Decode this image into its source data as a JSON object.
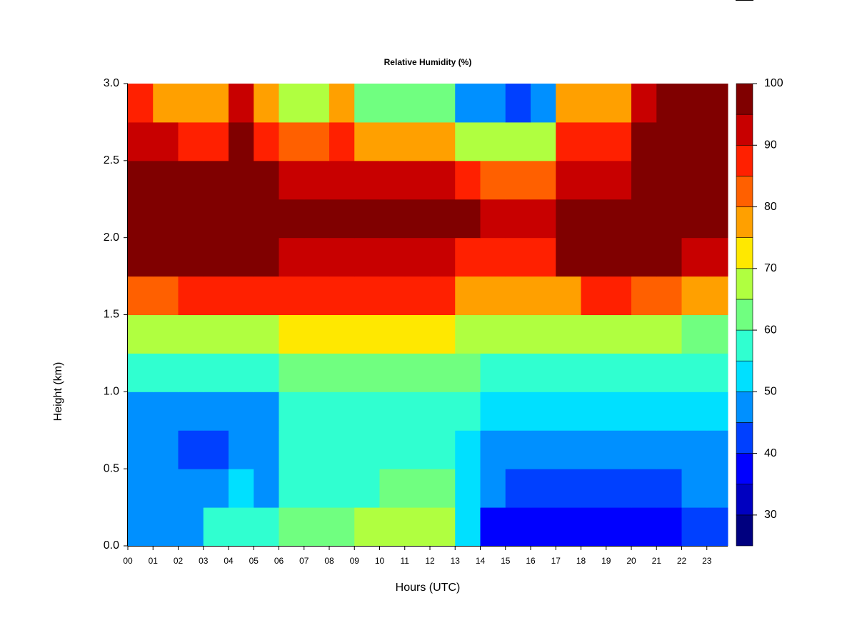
{
  "chart_data": {
    "type": "heatmap",
    "title": "Relative Humidity (%)",
    "xlabel": "Hours (UTC)",
    "ylabel": "Height (km)",
    "x": [
      0.5,
      1.5,
      2.5,
      3.5,
      4.5,
      5.5,
      6.5,
      7.5,
      8.5,
      9.5,
      10.5,
      11.5,
      12.5,
      13.5,
      14.5,
      15.5,
      16.5,
      17.5,
      18.5,
      19.5,
      20.5,
      21.5,
      22.5,
      23.5
    ],
    "y": [
      0.125,
      0.375,
      0.625,
      0.875,
      1.125,
      1.375,
      1.625,
      1.875,
      2.125,
      2.375,
      2.625,
      2.875
    ],
    "z": [
      [
        48,
        48,
        45,
        55,
        55,
        55,
        62,
        63,
        64,
        65,
        65,
        65,
        65,
        50,
        38,
        38,
        37,
        35,
        35,
        35,
        37,
        38,
        42,
        42
      ],
      [
        47,
        47,
        45,
        45,
        52,
        48,
        58,
        58,
        58,
        58,
        62,
        62,
        62,
        53,
        47,
        44,
        44,
        44,
        44,
        44,
        44,
        44,
        45,
        45
      ],
      [
        47,
        47,
        43,
        43,
        46,
        46,
        55,
        55,
        55,
        55,
        55,
        55,
        55,
        52,
        47,
        47,
        47,
        47,
        47,
        47,
        47,
        47,
        47,
        47
      ],
      [
        49,
        49,
        47,
        47,
        47,
        47,
        57,
        57,
        57,
        57,
        57,
        57,
        57,
        55,
        50,
        50,
        50,
        50,
        50,
        50,
        50,
        50,
        50,
        50
      ],
      [
        55,
        55,
        55,
        55,
        55,
        55,
        63,
        63,
        63,
        63,
        63,
        63,
        63,
        60,
        57,
        57,
        57,
        57,
        57,
        57,
        57,
        57,
        57,
        57
      ],
      [
        67,
        67,
        67,
        67,
        67,
        67,
        70,
        70,
        70,
        70,
        70,
        70,
        70,
        65,
        65,
        65,
        65,
        65,
        68,
        68,
        68,
        68,
        62,
        62
      ],
      [
        83,
        83,
        88,
        88,
        88,
        88,
        85,
        85,
        85,
        85,
        85,
        85,
        85,
        78,
        78,
        78,
        75,
        75,
        85,
        85,
        80,
        80,
        75,
        75
      ],
      [
        96,
        96,
        96,
        96,
        96,
        96,
        92,
        92,
        92,
        92,
        92,
        92,
        92,
        88,
        88,
        88,
        88,
        95,
        95,
        95,
        95,
        95,
        90,
        90
      ],
      [
        97,
        97,
        97,
        97,
        97,
        97,
        97,
        97,
        97,
        97,
        97,
        97,
        97,
        97,
        90,
        90,
        90,
        97,
        97,
        97,
        97,
        97,
        97,
        97
      ],
      [
        97,
        97,
        97,
        97,
        97,
        97,
        93,
        93,
        93,
        93,
        93,
        93,
        93,
        88,
        80,
        80,
        80,
        92,
        92,
        92,
        97,
        97,
        97,
        97
      ],
      [
        92,
        92,
        85,
        85,
        95,
        85,
        80,
        80,
        88,
        78,
        78,
        78,
        78,
        68,
        68,
        68,
        68,
        85,
        85,
        85,
        97,
        97,
        97,
        97
      ],
      [
        85,
        75,
        75,
        75,
        92,
        75,
        65,
        65,
        75,
        60,
        60,
        60,
        60,
        48,
        48,
        40,
        48,
        78,
        78,
        78,
        90,
        97,
        97,
        97
      ]
    ],
    "xlim": [
      0,
      23.83
    ],
    "ylim": [
      0,
      3
    ],
    "xticks": [
      {
        "value": 0,
        "label": "00"
      },
      {
        "value": 1,
        "label": "01"
      },
      {
        "value": 2,
        "label": "02"
      },
      {
        "value": 3,
        "label": "03"
      },
      {
        "value": 4,
        "label": "04"
      },
      {
        "value": 5,
        "label": "05"
      },
      {
        "value": 6,
        "label": "06"
      },
      {
        "value": 7,
        "label": "07"
      },
      {
        "value": 8,
        "label": "08"
      },
      {
        "value": 9,
        "label": "09"
      },
      {
        "value": 10,
        "label": "10"
      },
      {
        "value": 11,
        "label": "11"
      },
      {
        "value": 12,
        "label": "12"
      },
      {
        "value": 13,
        "label": "13"
      },
      {
        "value": 14,
        "label": "14"
      },
      {
        "value": 15,
        "label": "15"
      },
      {
        "value": 16,
        "label": "16"
      },
      {
        "value": 17,
        "label": "17"
      },
      {
        "value": 18,
        "label": "18"
      },
      {
        "value": 19,
        "label": "19"
      },
      {
        "value": 20,
        "label": "20"
      },
      {
        "value": 21,
        "label": "21"
      },
      {
        "value": 22,
        "label": "22"
      },
      {
        "value": 23,
        "label": "23"
      }
    ],
    "yticks": [
      {
        "value": 0,
        "label": "0.0"
      },
      0.5,
      {
        "value": 1,
        "label": "1.0"
      },
      1.5,
      {
        "value": 2,
        "label": "2.0"
      },
      2.5,
      {
        "value": 3,
        "label": "3.0"
      }
    ],
    "colorbar": {
      "levels": [
        25,
        30,
        35,
        40,
        45,
        50,
        55,
        60,
        65,
        70,
        75,
        80,
        85,
        90,
        95,
        100
      ],
      "colors": [
        "#00007f",
        "#0000c0",
        "#0000ff",
        "#0040ff",
        "#0090ff",
        "#00e0ff",
        "#30ffd0",
        "#70ff80",
        "#b0ff40",
        "#ffe800",
        "#ffa000",
        "#ff6000",
        "#ff2000",
        "#c80000",
        "#800000"
      ],
      "ticks": [
        30,
        40,
        50,
        60,
        70,
        80,
        90,
        100
      ]
    }
  }
}
